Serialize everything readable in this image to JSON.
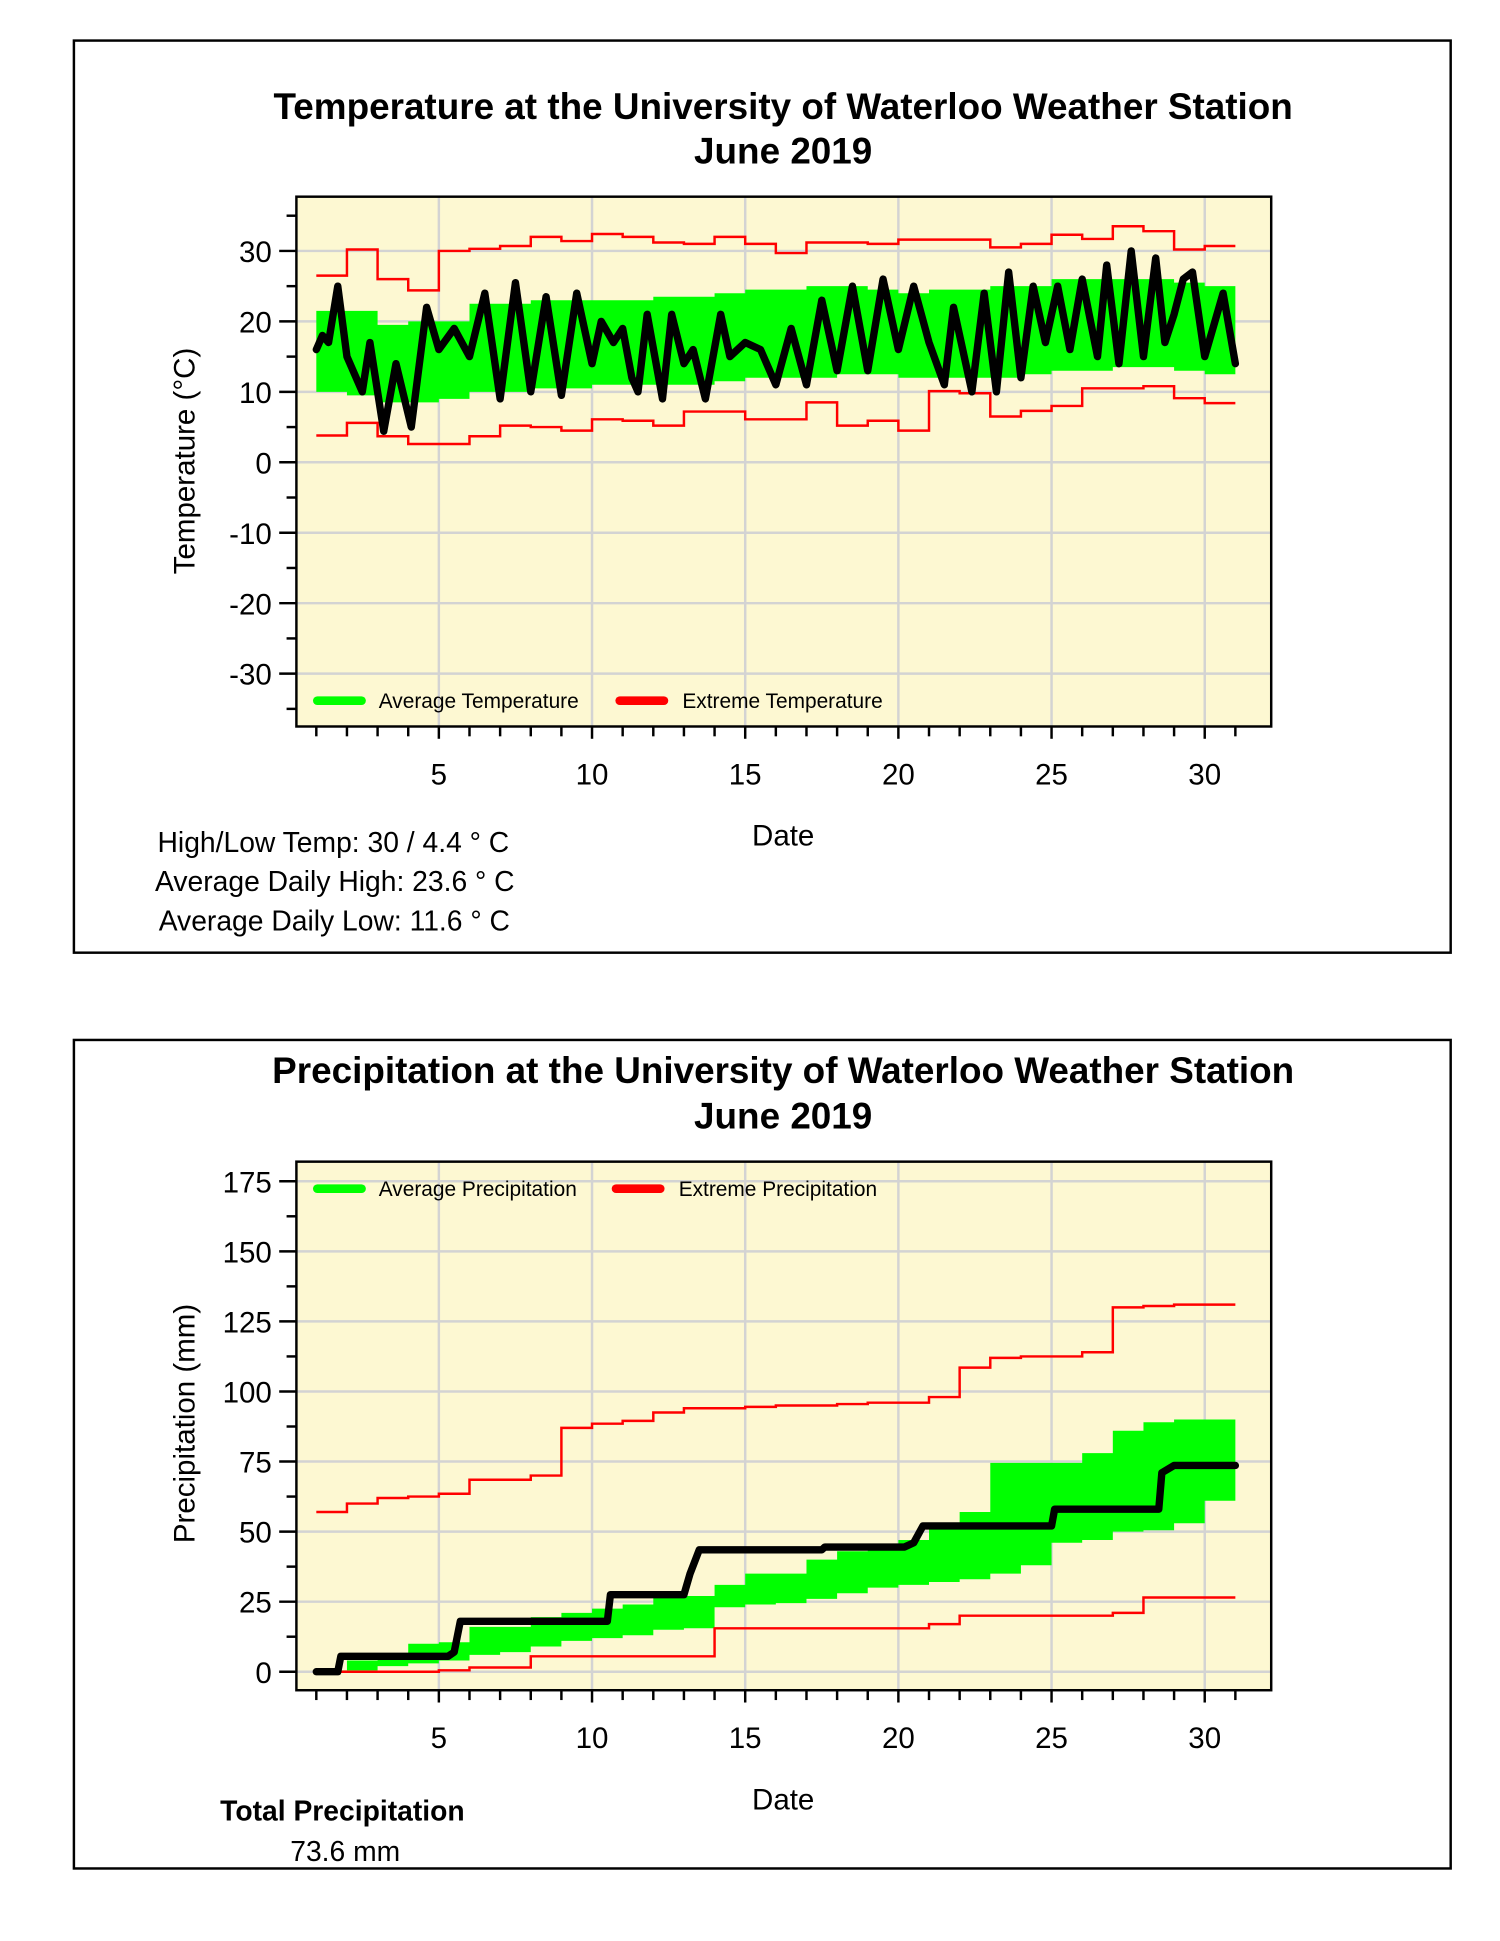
{
  "chart_data": [
    {
      "type": "line",
      "title": "Temperature at the University of Waterloo Weather Station",
      "subtitle": "June 2019",
      "xlabel": "Date",
      "ylabel": "Temperature (°C)",
      "xlim": [
        0.35,
        32.17
      ],
      "ylim": [
        -37.5,
        37.7
      ],
      "xticks": [
        5,
        10,
        15,
        20,
        25,
        30
      ],
      "yticks": [
        -30,
        -20,
        -10,
        0,
        10,
        20,
        30
      ],
      "grid": true,
      "legend_placement": "bottom-left",
      "legend": [
        "Average Temperature",
        "Extreme Temperature"
      ],
      "colors": {
        "average": "#00ff00",
        "extreme": "#ff0000",
        "actual": "#000000",
        "plot_bg": "#fdf8d2",
        "grid": "#d3d3d3"
      },
      "days": [
        1,
        2,
        3,
        4,
        5,
        6,
        7,
        8,
        9,
        10,
        11,
        12,
        13,
        14,
        15,
        16,
        17,
        18,
        19,
        20,
        21,
        22,
        23,
        24,
        25,
        26,
        27,
        28,
        29,
        30
      ],
      "average_high": [
        21.5,
        21.5,
        19.5,
        20,
        20,
        22.5,
        22.5,
        23,
        23,
        23,
        23,
        23.5,
        23.5,
        24,
        24.5,
        24.5,
        25,
        25,
        24.5,
        24,
        24.5,
        24.5,
        25,
        25,
        26,
        26,
        26,
        26,
        25.5,
        25
      ],
      "average_low": [
        10,
        9.5,
        8.5,
        8.5,
        9,
        10,
        10,
        10.5,
        10.5,
        11,
        11,
        11,
        11,
        11.5,
        12,
        12,
        12,
        12.5,
        12.5,
        12,
        12,
        12,
        12,
        12.5,
        13,
        13,
        13.5,
        13.5,
        13,
        12.5
      ],
      "extreme_high": [
        26.5,
        30.2,
        26,
        24.4,
        30,
        30.3,
        30.7,
        32,
        31.4,
        32.4,
        32,
        31.2,
        31,
        32,
        31,
        29.7,
        31.2,
        31.2,
        31,
        31.6,
        31.6,
        31.6,
        30.5,
        31,
        32.3,
        31.7,
        33.5,
        32.8,
        30.2,
        30.7
      ],
      "extreme_low": [
        3.8,
        5.6,
        3.7,
        2.6,
        2.6,
        3.7,
        5.2,
        5,
        4.5,
        6.1,
        5.9,
        5.2,
        7.2,
        7.2,
        6.1,
        6.1,
        8.5,
        5.2,
        5.9,
        4.5,
        10.1,
        9.8,
        6.5,
        7.3,
        8,
        10.5,
        10.5,
        10.8,
        9.1,
        8.4
      ],
      "actual": [
        [
          1,
          16
        ],
        [
          1.2,
          18
        ],
        [
          1.4,
          17
        ],
        [
          1.7,
          25
        ],
        [
          2,
          15
        ],
        [
          2.5,
          10
        ],
        [
          2.75,
          17
        ],
        [
          3.2,
          4.4
        ],
        [
          3.6,
          14
        ],
        [
          4.1,
          5
        ],
        [
          4.6,
          22
        ],
        [
          5,
          16
        ],
        [
          5.5,
          19
        ],
        [
          6,
          15
        ],
        [
          6.5,
          24
        ],
        [
          7,
          9
        ],
        [
          7.5,
          25.5
        ],
        [
          8,
          10
        ],
        [
          8.5,
          23.5
        ],
        [
          9,
          9.5
        ],
        [
          9.5,
          24
        ],
        [
          10,
          14
        ],
        [
          10.3,
          20
        ],
        [
          10.7,
          17
        ],
        [
          11,
          19
        ],
        [
          11.3,
          12
        ],
        [
          11.5,
          10
        ],
        [
          11.8,
          21
        ],
        [
          12.3,
          9
        ],
        [
          12.6,
          21
        ],
        [
          13,
          14
        ],
        [
          13.3,
          16
        ],
        [
          13.7,
          9
        ],
        [
          14.2,
          21
        ],
        [
          14.5,
          15
        ],
        [
          15,
          17
        ],
        [
          15.5,
          16
        ],
        [
          16,
          11
        ],
        [
          16.5,
          19
        ],
        [
          17,
          11
        ],
        [
          17.5,
          23
        ],
        [
          18,
          13
        ],
        [
          18.5,
          25
        ],
        [
          19,
          13
        ],
        [
          19.5,
          26
        ],
        [
          20,
          16
        ],
        [
          20.5,
          25
        ],
        [
          21,
          17
        ],
        [
          21.5,
          11
        ],
        [
          21.8,
          22
        ],
        [
          22.4,
          10
        ],
        [
          22.8,
          24
        ],
        [
          23.2,
          10
        ],
        [
          23.6,
          27
        ],
        [
          24,
          12
        ],
        [
          24.4,
          25
        ],
        [
          24.8,
          17
        ],
        [
          25.2,
          25
        ],
        [
          25.6,
          16
        ],
        [
          26,
          26
        ],
        [
          26.5,
          15
        ],
        [
          26.8,
          28
        ],
        [
          27.2,
          14
        ],
        [
          27.6,
          30
        ],
        [
          28,
          15
        ],
        [
          28.4,
          29
        ],
        [
          28.7,
          17
        ],
        [
          29,
          21
        ],
        [
          29.3,
          26
        ],
        [
          29.6,
          27
        ],
        [
          30,
          15
        ],
        [
          30.6,
          24
        ],
        [
          31,
          14
        ]
      ]
    },
    {
      "type": "line",
      "title": "Precipitation at the University of Waterloo Weather Station",
      "subtitle": "June 2019",
      "xlabel": "Date",
      "ylabel": "Precipitation (mm)",
      "xlim": [
        0.35,
        32.17
      ],
      "ylim": [
        -6.6,
        182
      ],
      "xticks": [
        5,
        10,
        15,
        20,
        25,
        30
      ],
      "yticks": [
        0,
        25,
        50,
        75,
        100,
        125,
        150,
        175
      ],
      "grid": true,
      "legend_placement": "top-left",
      "legend": [
        "Average Precipitation",
        "Extreme Precipitation"
      ],
      "colors": {
        "average": "#00ff00",
        "extreme": "#ff0000",
        "actual": "#000000",
        "plot_bg": "#fdf8d2",
        "grid": "#d3d3d3"
      },
      "days": [
        1,
        2,
        3,
        4,
        5,
        6,
        7,
        8,
        9,
        10,
        11,
        12,
        13,
        14,
        15,
        16,
        17,
        18,
        19,
        20,
        21,
        22,
        23,
        24,
        25,
        26,
        27,
        28,
        29,
        30
      ],
      "average_high": [
        0.5,
        4,
        5.5,
        10,
        10.5,
        16,
        16,
        19.5,
        21,
        22.5,
        24,
        27,
        27,
        31,
        35,
        35,
        40,
        43,
        45.5,
        47,
        51,
        57,
        74.5,
        74.5,
        74.5,
        78,
        86,
        89,
        90,
        90
      ],
      "average_low": [
        0,
        0.5,
        2,
        3,
        4,
        6,
        7,
        9,
        11,
        12,
        13,
        15,
        15.5,
        23,
        24,
        24.5,
        26,
        28,
        30,
        31,
        32,
        33,
        35,
        38,
        46,
        47,
        50,
        50.5,
        53,
        61
      ],
      "extreme_high": [
        57,
        60,
        62,
        62.5,
        63.5,
        68.5,
        68.5,
        70,
        87,
        88.5,
        89.5,
        92.5,
        94,
        94,
        94.5,
        95,
        95,
        95.5,
        96,
        96,
        98,
        108.5,
        112,
        112.5,
        112.5,
        114,
        130,
        130.5,
        131,
        131
      ],
      "extreme_low": [
        0,
        0,
        0,
        0,
        0.5,
        1.5,
        1.5,
        5.5,
        5.5,
        5.5,
        5.5,
        5.5,
        5.5,
        15.5,
        15.5,
        15.5,
        15.5,
        15.5,
        15.5,
        15.5,
        17,
        20,
        20,
        20,
        20,
        20,
        21,
        26.5,
        26.5,
        26.5
      ],
      "actual": [
        [
          1,
          0
        ],
        [
          1.7,
          0
        ],
        [
          1.8,
          5.5
        ],
        [
          5.3,
          5.5
        ],
        [
          5.5,
          7
        ],
        [
          5.7,
          18
        ],
        [
          10.5,
          18
        ],
        [
          10.6,
          27.5
        ],
        [
          13,
          27.5
        ],
        [
          13.2,
          35
        ],
        [
          13.5,
          43.5
        ],
        [
          17.5,
          43.5
        ],
        [
          17.6,
          44.5
        ],
        [
          20.2,
          44.5
        ],
        [
          20.5,
          46
        ],
        [
          20.8,
          52
        ],
        [
          25,
          52
        ],
        [
          25.1,
          58
        ],
        [
          28.5,
          58
        ],
        [
          28.6,
          71
        ],
        [
          29,
          73.6
        ],
        [
          31,
          73.6
        ]
      ]
    }
  ],
  "temperature_stats": {
    "high_low": "High/Low Temp:  30 / 4.4 ° C",
    "avg_high": "Average Daily High:  23.6 ° C",
    "avg_low": "Average Daily Low:  11.6 ° C"
  },
  "precipitation_stats": {
    "label": "Total Precipitation",
    "total": "73.6 mm"
  }
}
